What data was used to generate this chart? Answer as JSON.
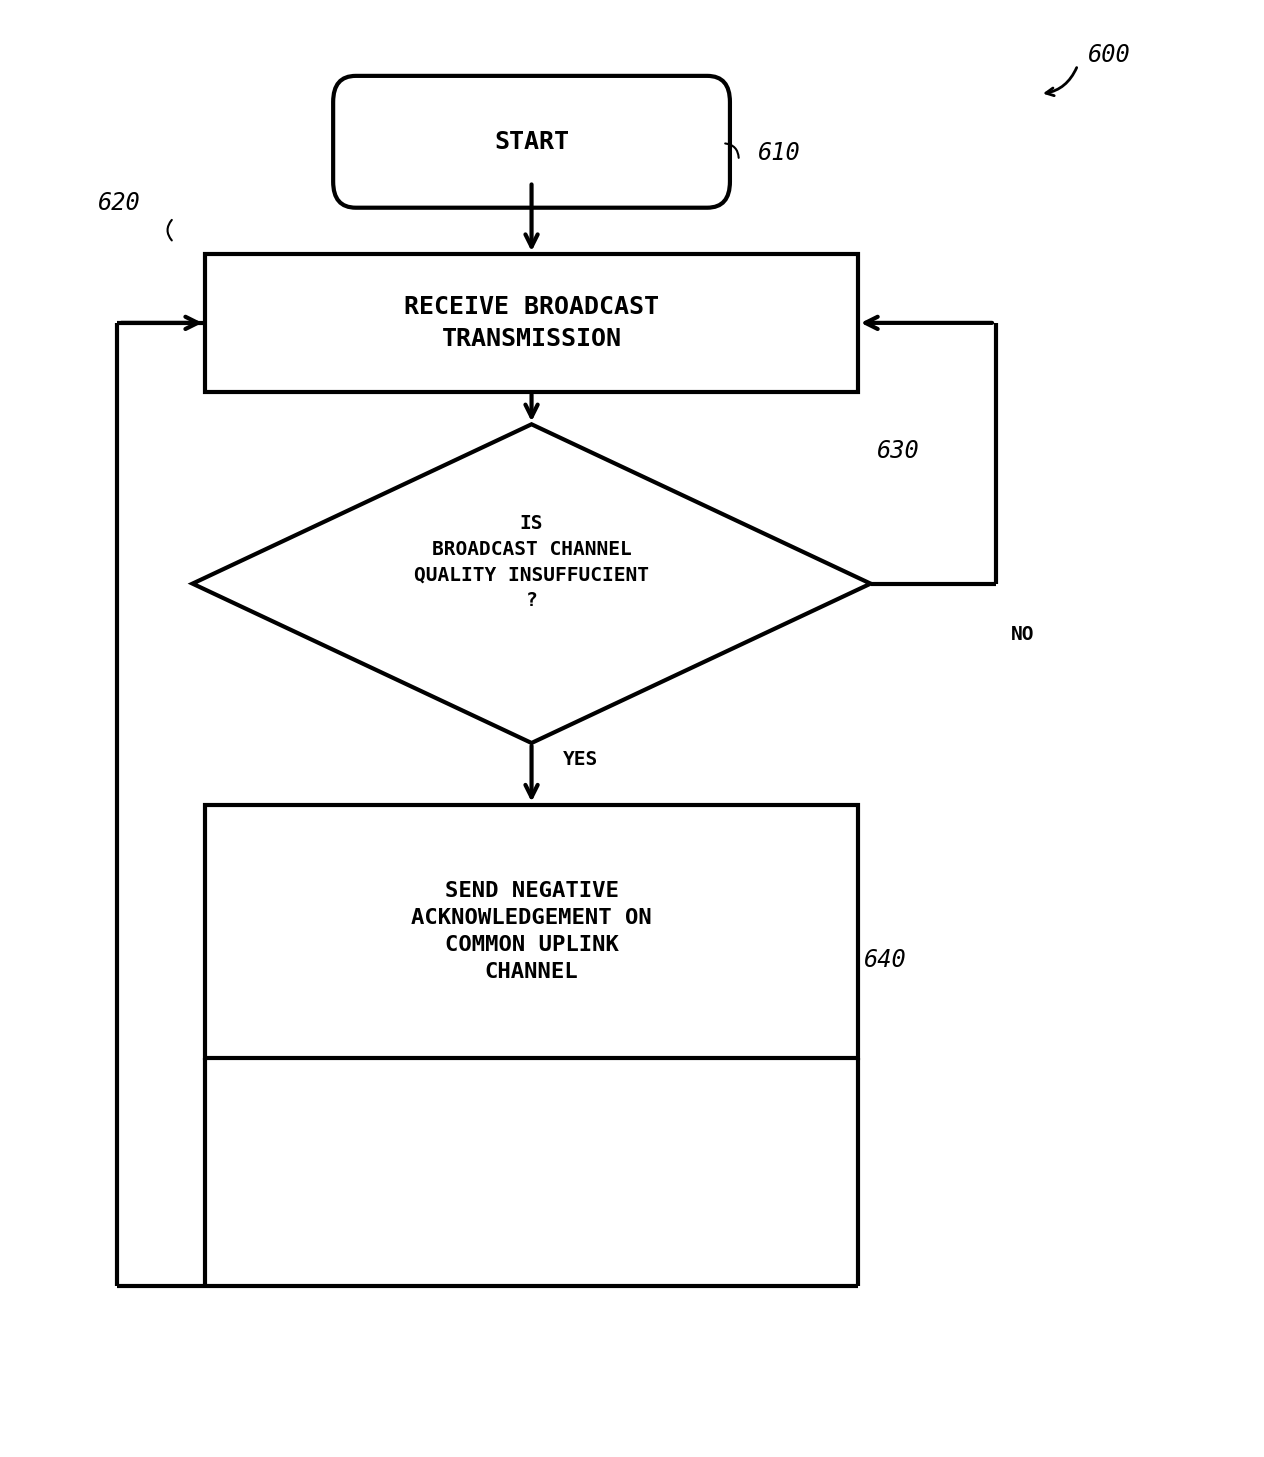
{
  "bg_color": "#ffffff",
  "line_color": "#000000",
  "text_color": "#000000",
  "fig_width": 12.64,
  "fig_height": 14.57,
  "title_label": "600",
  "start_label": "START",
  "start_ref": "610",
  "box1_label": "RECEIVE BROADCAST\nTRANSMISSION",
  "box1_ref": "620",
  "diamond_label": "IS\nBROADCAST CHANNEL\nQUALITY INSUFFUCIENT\n?",
  "diamond_ref": "630",
  "box2_label": "SEND NEGATIVE\nACKNOWLEDGEMENT ON\nCOMMON UPLINK\nCHANNEL",
  "box2_ref": "640",
  "yes_label": "YES",
  "no_label": "NO",
  "lw": 3.0,
  "font_size_main": 18,
  "font_size_small": 16,
  "font_size_label": 17
}
